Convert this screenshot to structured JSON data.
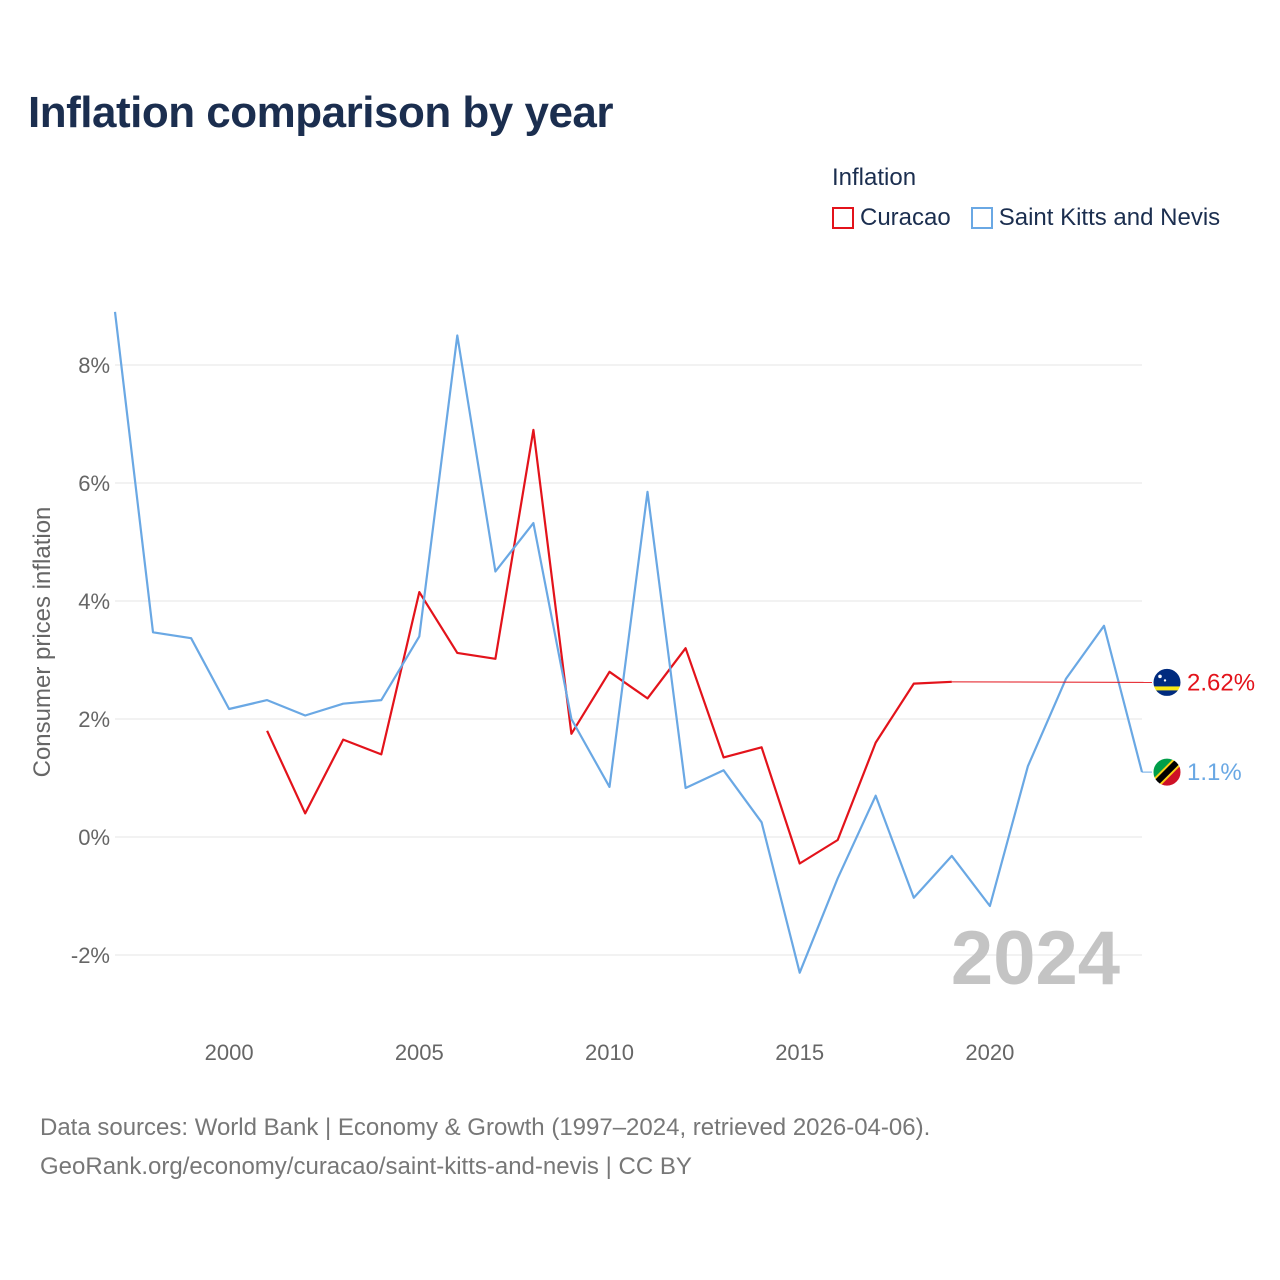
{
  "title": "Inflation comparison by year",
  "legend": {
    "title": "Inflation",
    "items": [
      {
        "label": "Curacao",
        "color": "#e3131b"
      },
      {
        "label": "Saint Kitts and Nevis",
        "color": "#6aa8e4"
      }
    ]
  },
  "footer": {
    "line1": "Data sources: World Bank | Economy & Growth (1997–2024, retrieved 2026-04-06).",
    "line2": "GeoRank.org/economy/curacao/saint-kitts-and-nevis | CC BY"
  },
  "chart_data": {
    "type": "line",
    "title": "Inflation comparison by year",
    "xlabel": "",
    "ylabel": "Consumer prices inflation",
    "xlim": [
      1997,
      2024
    ],
    "ylim": [
      -3,
      9.5
    ],
    "x_ticks": [
      2000,
      2005,
      2010,
      2015,
      2020
    ],
    "y_ticks": [
      -2,
      0,
      2,
      4,
      6,
      8
    ],
    "y_tick_labels": [
      "-2%",
      "0%",
      "2%",
      "4%",
      "6%",
      "8%"
    ],
    "grid": true,
    "current_year": "2024",
    "series": [
      {
        "name": "Curacao",
        "color": "#e3131b",
        "end_label": "2.62%",
        "end_value": 2.62,
        "points": [
          [
            2001,
            1.8
          ],
          [
            2002,
            0.4
          ],
          [
            2003,
            1.65
          ],
          [
            2004,
            1.4
          ],
          [
            2005,
            4.15
          ],
          [
            2006,
            3.12
          ],
          [
            2007,
            3.02
          ],
          [
            2008,
            6.9
          ],
          [
            2009,
            1.75
          ],
          [
            2010,
            2.8
          ],
          [
            2011,
            2.35
          ],
          [
            2012,
            3.2
          ],
          [
            2013,
            1.35
          ],
          [
            2014,
            1.52
          ],
          [
            2015,
            -0.45
          ],
          [
            2016,
            -0.05
          ],
          [
            2017,
            1.6
          ],
          [
            2018,
            2.6
          ],
          [
            2019,
            2.63
          ]
        ]
      },
      {
        "name": "Saint Kitts and Nevis",
        "color": "#6aa8e4",
        "end_label": "1.1%",
        "end_value": 1.1,
        "points": [
          [
            1997,
            8.9
          ],
          [
            1998,
            3.47
          ],
          [
            1999,
            3.37
          ],
          [
            2000,
            2.17
          ],
          [
            2001,
            2.32
          ],
          [
            2002,
            2.06
          ],
          [
            2003,
            2.26
          ],
          [
            2004,
            2.32
          ],
          [
            2005,
            3.4
          ],
          [
            2006,
            8.5
          ],
          [
            2007,
            4.5
          ],
          [
            2008,
            5.32
          ],
          [
            2009,
            2.0
          ],
          [
            2010,
            0.85
          ],
          [
            2011,
            5.85
          ],
          [
            2012,
            0.83
          ],
          [
            2013,
            1.13
          ],
          [
            2014,
            0.25
          ],
          [
            2015,
            -2.3
          ],
          [
            2016,
            -0.7
          ],
          [
            2017,
            0.7
          ],
          [
            2018,
            -1.03
          ],
          [
            2019,
            -0.32
          ],
          [
            2020,
            -1.17
          ],
          [
            2021,
            1.2
          ],
          [
            2022,
            2.68
          ],
          [
            2023,
            3.58
          ],
          [
            2024,
            1.1
          ]
        ]
      }
    ]
  }
}
